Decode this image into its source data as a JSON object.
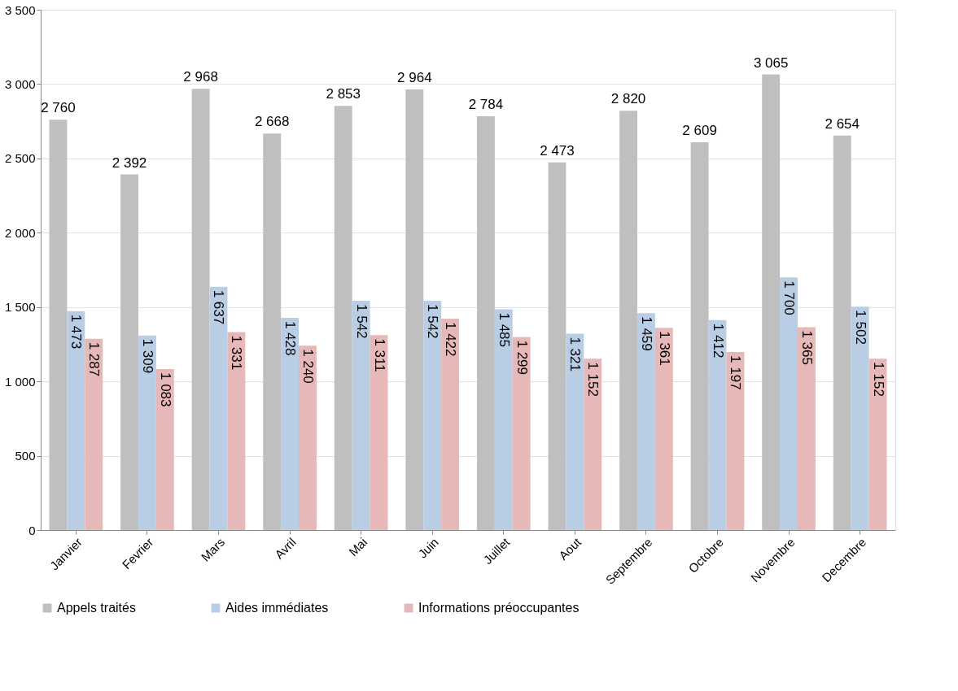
{
  "chart_data": {
    "type": "bar",
    "categories": [
      "Janvier",
      "Fevrier",
      "Mars",
      "Avril",
      "Mai",
      "Juin",
      "Juillet",
      "Aout",
      "Septembre",
      "Octobre",
      "Novembre",
      "Decembre"
    ],
    "series": [
      {
        "name": "Appels traités",
        "color": "#bfbfbf",
        "values": [
          2760,
          2392,
          2968,
          2668,
          2853,
          2964,
          2784,
          2473,
          2820,
          2609,
          3065,
          2654
        ]
      },
      {
        "name": "Aides immédiates",
        "color": "#b9cde5",
        "values": [
          1473,
          1309,
          1637,
          1428,
          1542,
          1542,
          1485,
          1321,
          1459,
          1412,
          1700,
          1502
        ]
      },
      {
        "name": "Informations préoccupantes",
        "color": "#e6b9b8",
        "values": [
          1287,
          1083,
          1331,
          1240,
          1311,
          1422,
          1299,
          1152,
          1361,
          1197,
          1365,
          1152
        ]
      }
    ],
    "ylim": [
      0,
      3500
    ],
    "yticks": [
      0,
      500,
      1000,
      1500,
      2000,
      2500,
      3000,
      3500
    ],
    "grid": "y",
    "legend": "bottom",
    "data_labels": true
  }
}
